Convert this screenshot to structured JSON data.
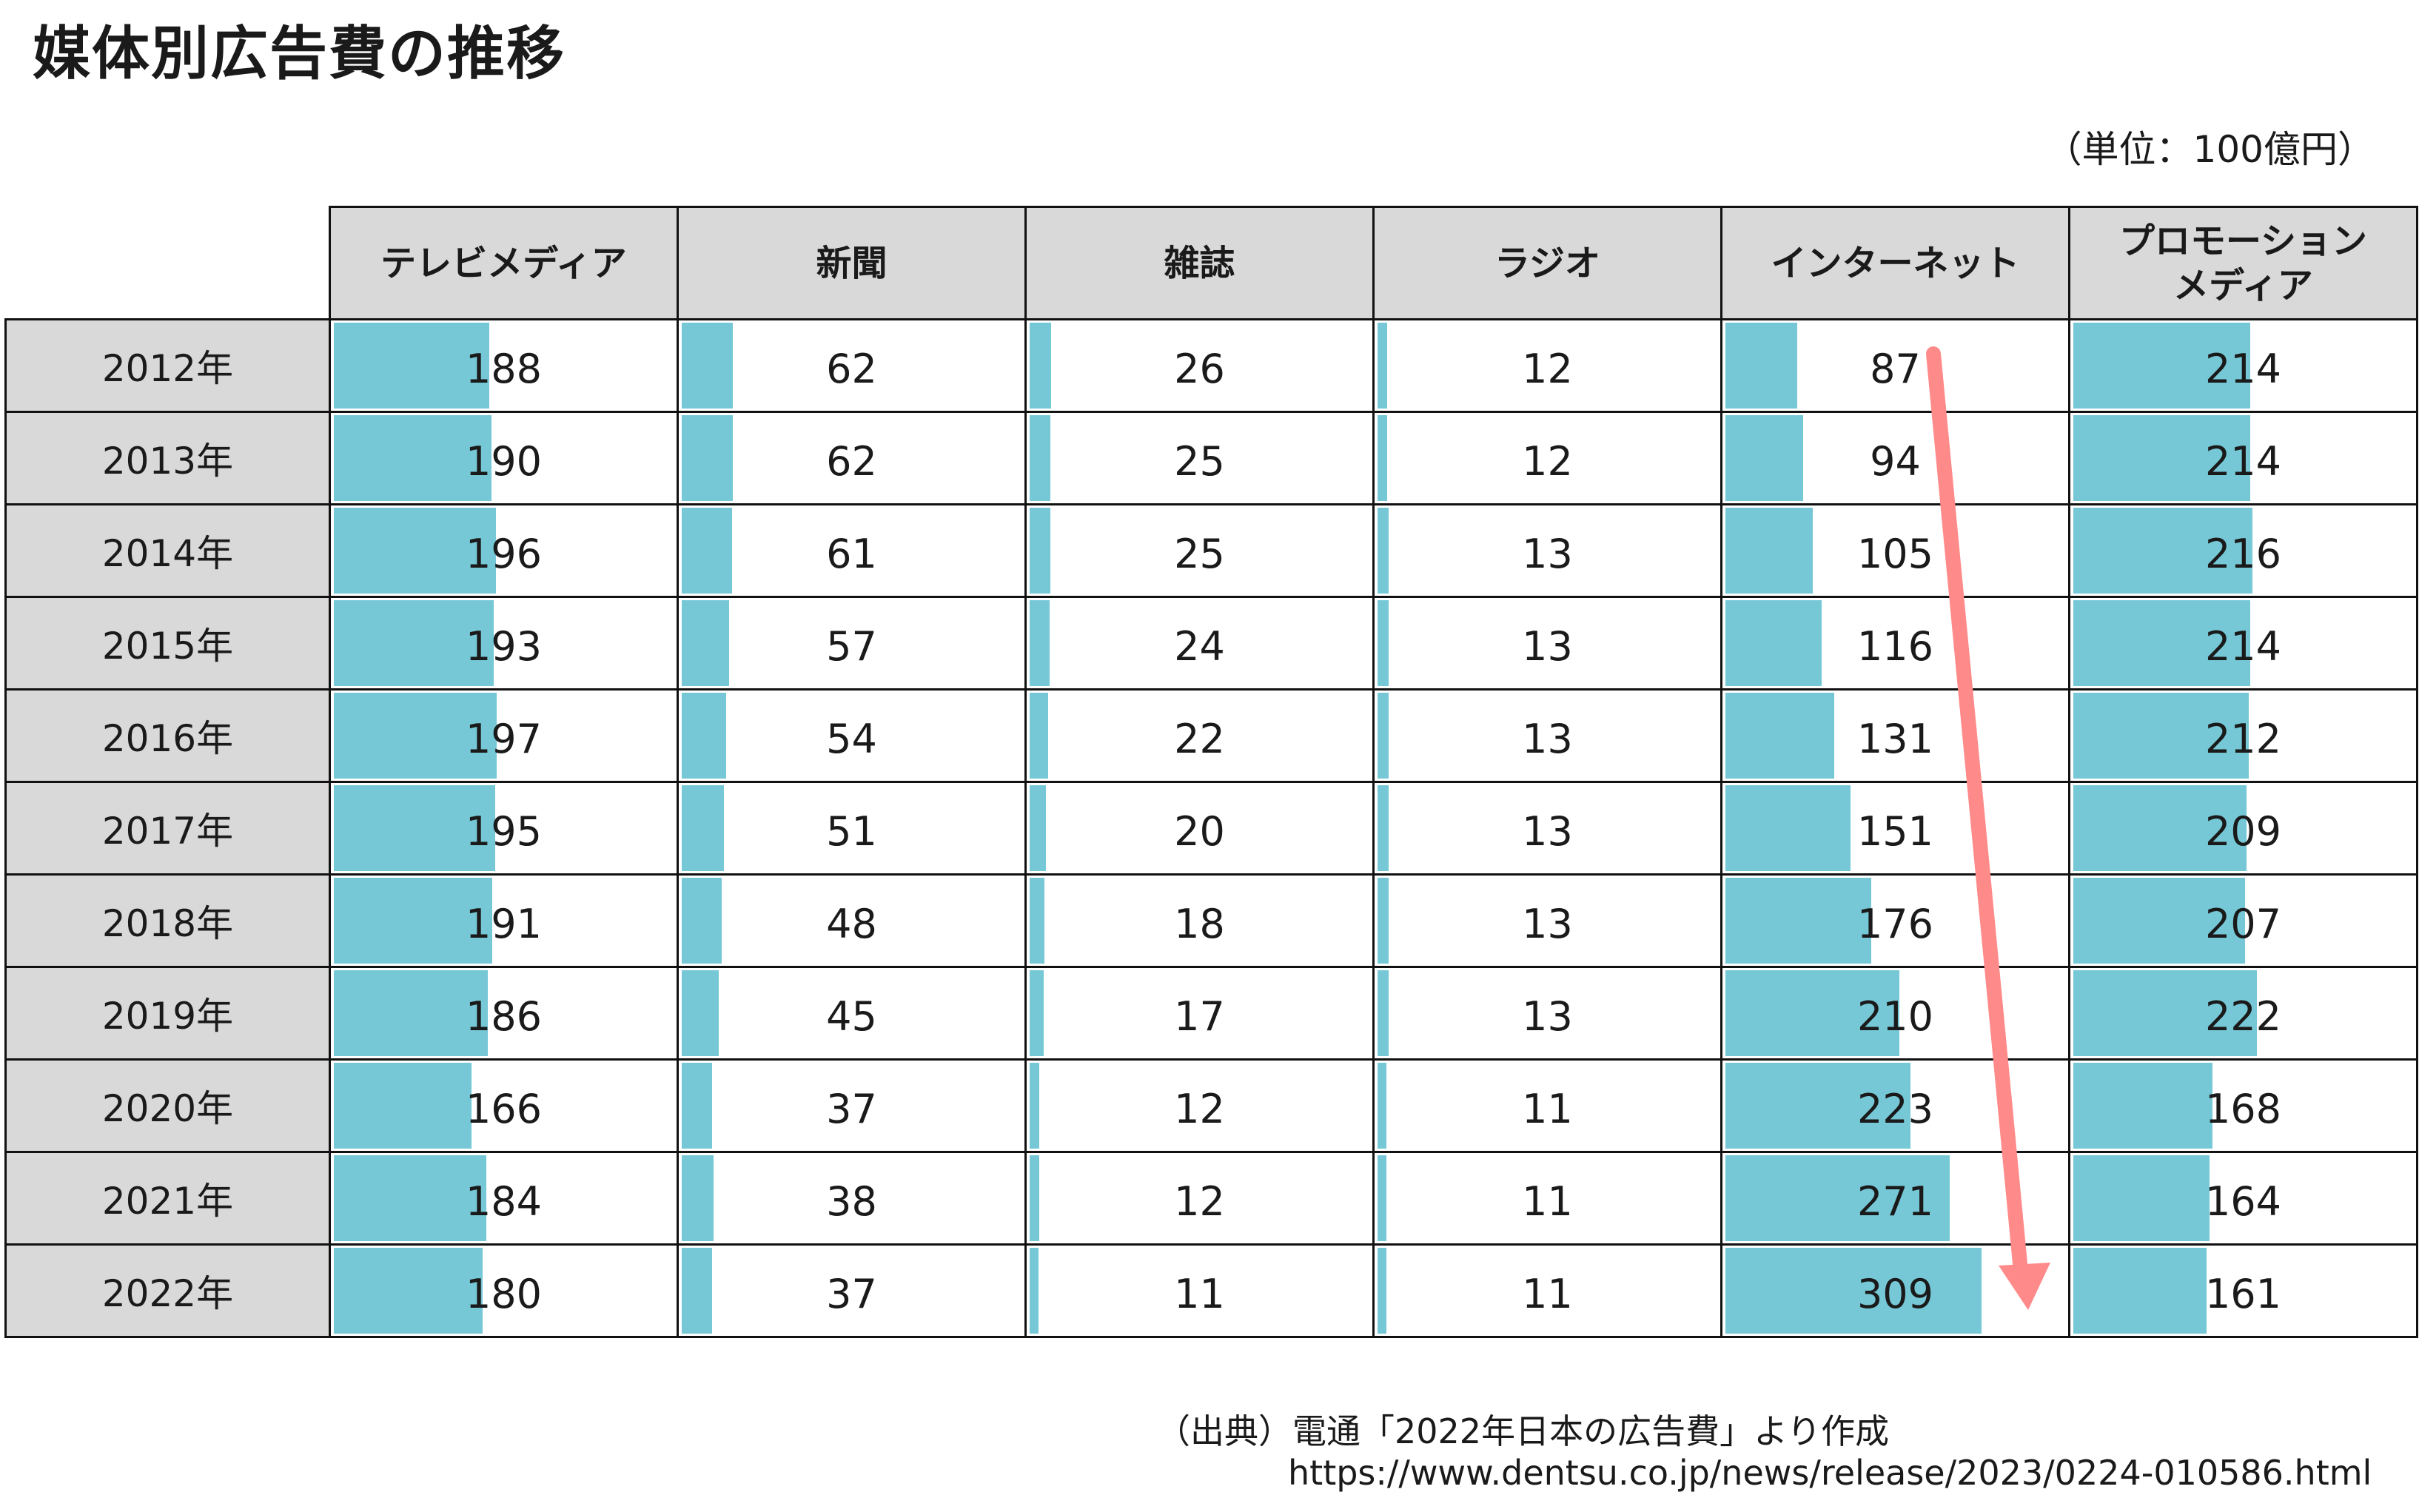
{
  "title": "媒体別広告費の推移",
  "unit_note": "（単位：100億円）",
  "source": {
    "line1": "（出典）電通「2022年日本の広告費」より作成",
    "line2": "https://www.dentsu.co.jp/news/release/2023/0224-010586.html"
  },
  "colors": {
    "bar": "#76c8d6",
    "header_bg": "#d9d9d9",
    "arrow": "#ff8a8a"
  },
  "chart_data": {
    "type": "table",
    "title": "媒体別広告費の推移",
    "unit": "（単位：100億円）",
    "columns": [
      "テレビメディア",
      "新聞",
      "雑誌",
      "ラジオ",
      "インターネット",
      "プロモーションメディア"
    ],
    "rows": [
      {
        "year": "2012年",
        "values": [
          188,
          62,
          26,
          12,
          87,
          214
        ]
      },
      {
        "year": "2013年",
        "values": [
          190,
          62,
          25,
          12,
          94,
          214
        ]
      },
      {
        "year": "2014年",
        "values": [
          196,
          61,
          25,
          13,
          105,
          216
        ]
      },
      {
        "year": "2015年",
        "values": [
          193,
          57,
          24,
          13,
          116,
          214
        ]
      },
      {
        "year": "2016年",
        "values": [
          197,
          54,
          22,
          13,
          131,
          212
        ]
      },
      {
        "year": "2017年",
        "values": [
          195,
          51,
          20,
          13,
          151,
          209
        ]
      },
      {
        "year": "2018年",
        "values": [
          191,
          48,
          18,
          13,
          176,
          207
        ]
      },
      {
        "year": "2019年",
        "values": [
          186,
          45,
          17,
          13,
          210,
          222
        ]
      },
      {
        "year": "2020年",
        "values": [
          166,
          37,
          12,
          11,
          223,
          168
        ]
      },
      {
        "year": "2021年",
        "values": [
          184,
          38,
          12,
          11,
          271,
          164
        ]
      },
      {
        "year": "2022年",
        "values": [
          180,
          37,
          11,
          11,
          309,
          161
        ]
      }
    ],
    "bar_scale_max": 420
  }
}
